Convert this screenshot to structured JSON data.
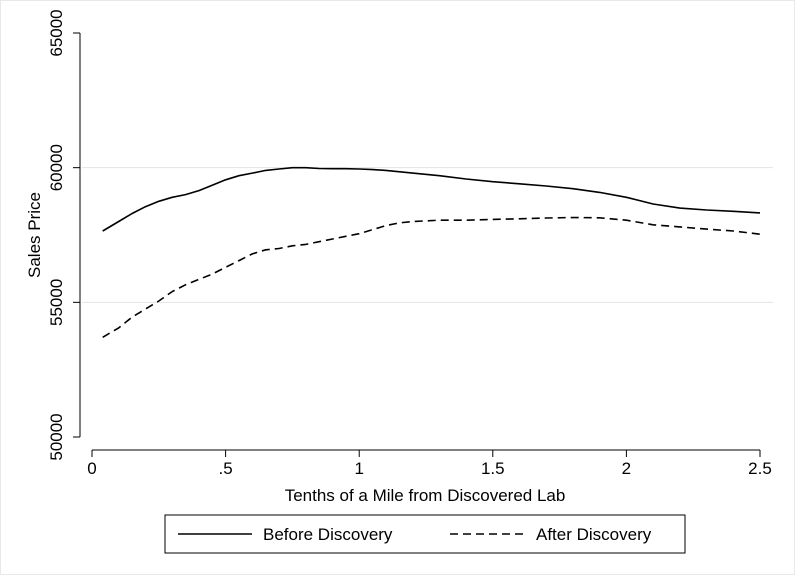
{
  "chart_data": {
    "type": "line",
    "title": "",
    "xlabel": "Tenths of a Mile from Discovered Lab",
    "ylabel": "Sales Price",
    "xlim": [
      0,
      2.5
    ],
    "ylim": [
      50000,
      65000
    ],
    "x_ticks": [
      0,
      0.5,
      1,
      1.5,
      2,
      2.5
    ],
    "x_tick_labels": [
      "0",
      ".5",
      "1",
      "1.5",
      "2",
      "2.5"
    ],
    "y_ticks": [
      50000,
      55000,
      60000,
      65000
    ],
    "y_tick_labels": [
      "50000",
      "55000",
      "60000",
      "65000"
    ],
    "grid": "horizontal",
    "legend_position": "bottom",
    "series": [
      {
        "name": "Before Discovery",
        "style": "solid",
        "color": "#000000",
        "x": [
          0.04,
          0.1,
          0.15,
          0.2,
          0.25,
          0.3,
          0.35,
          0.4,
          0.45,
          0.5,
          0.55,
          0.6,
          0.65,
          0.7,
          0.75,
          0.8,
          0.85,
          0.9,
          0.95,
          1.0,
          1.05,
          1.1,
          1.2,
          1.3,
          1.4,
          1.5,
          1.6,
          1.7,
          1.8,
          1.9,
          2.0,
          2.1,
          2.2,
          2.3,
          2.4,
          2.5
        ],
        "y": [
          57650,
          58000,
          58300,
          58550,
          58750,
          58900,
          59000,
          59150,
          59350,
          59550,
          59700,
          59800,
          59900,
          59950,
          60000,
          60000,
          59970,
          59960,
          59960,
          59950,
          59930,
          59900,
          59800,
          59700,
          59580,
          59480,
          59400,
          59320,
          59220,
          59080,
          58900,
          58650,
          58500,
          58430,
          58380,
          58320
        ]
      },
      {
        "name": "After Discovery",
        "style": "dashed",
        "color": "#000000",
        "x": [
          0.04,
          0.1,
          0.15,
          0.2,
          0.25,
          0.3,
          0.35,
          0.4,
          0.45,
          0.5,
          0.55,
          0.6,
          0.65,
          0.7,
          0.75,
          0.8,
          0.85,
          0.9,
          0.95,
          1.0,
          1.05,
          1.1,
          1.15,
          1.2,
          1.3,
          1.4,
          1.5,
          1.6,
          1.7,
          1.8,
          1.9,
          2.0,
          2.1,
          2.2,
          2.3,
          2.4,
          2.5
        ],
        "y": [
          53700,
          54050,
          54450,
          54750,
          55050,
          55400,
          55650,
          55850,
          56050,
          56300,
          56550,
          56800,
          56950,
          57000,
          57100,
          57150,
          57250,
          57350,
          57450,
          57550,
          57700,
          57850,
          57950,
          58000,
          58050,
          58050,
          58080,
          58100,
          58130,
          58150,
          58140,
          58050,
          57880,
          57800,
          57720,
          57650,
          57530
        ]
      }
    ]
  }
}
